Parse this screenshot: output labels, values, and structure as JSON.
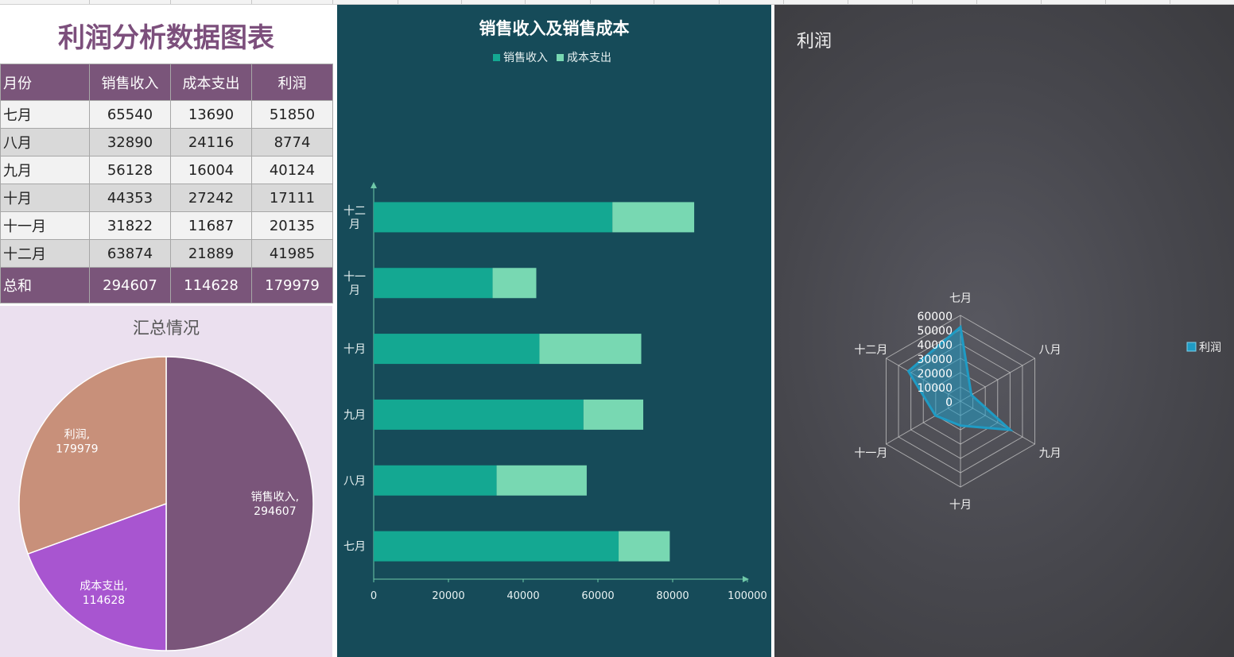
{
  "table": {
    "title": "利润分析数据图表",
    "headers": [
      "月份",
      "销售收入",
      "成本支出",
      "利润"
    ],
    "rows": [
      [
        "七月",
        "65540",
        "13690",
        "51850"
      ],
      [
        "八月",
        "32890",
        "24116",
        "8774"
      ],
      [
        "九月",
        "56128",
        "16004",
        "40124"
      ],
      [
        "十月",
        "44353",
        "27242",
        "17111"
      ],
      [
        "十一月",
        "31822",
        "11687",
        "20135"
      ],
      [
        "十二月",
        "63874",
        "21889",
        "41985"
      ]
    ],
    "total": [
      "总和",
      "294607",
      "114628",
      "179979"
    ]
  },
  "colors": {
    "purple": "#7a557a",
    "revenue": "#14a892",
    "cost": "#78d8b2",
    "pie_revenue": "#7a557a",
    "pie_cost": "#a855d0",
    "pie_profit": "#c8907a",
    "radar": "#1f9bc4"
  },
  "chart_data": [
    {
      "type": "pie",
      "title": "汇总情况",
      "slices": [
        {
          "name": "销售收入",
          "value": 294607,
          "label": "销售收入,",
          "value_label": "294607"
        },
        {
          "name": "成本支出",
          "value": 114628,
          "label": "成本支出,",
          "value_label": "114628"
        },
        {
          "name": "利润",
          "value": 179979,
          "label": "利润,",
          "value_label": "179979"
        }
      ]
    },
    {
      "type": "bar",
      "orientation": "horizontal",
      "stacked": true,
      "title": "销售收入及销售成本",
      "categories": [
        "七月",
        "八月",
        "九月",
        "十月",
        "十一月",
        "十二月"
      ],
      "category_labels": [
        [
          "七月"
        ],
        [
          "八月"
        ],
        [
          "九月"
        ],
        [
          "十月"
        ],
        [
          "十一",
          "月"
        ],
        [
          "十二",
          "月"
        ]
      ],
      "series": [
        {
          "name": "销售收入",
          "values": [
            65540,
            32890,
            56128,
            44353,
            31822,
            63874
          ]
        },
        {
          "name": "成本支出",
          "values": [
            13690,
            24116,
            16004,
            27242,
            11687,
            21889
          ]
        }
      ],
      "xlim": [
        0,
        100000
      ],
      "xticks": [
        "0",
        "20000",
        "40000",
        "60000",
        "80000",
        "100000"
      ],
      "legend": "top",
      "grid": false
    },
    {
      "type": "radar",
      "title": "利润",
      "categories": [
        "七月",
        "八月",
        "九月",
        "十月",
        "十一月",
        "十二月"
      ],
      "series": [
        {
          "name": "利润",
          "values": [
            51850,
            8774,
            40124,
            17111,
            20135,
            41985
          ]
        }
      ],
      "rlim": [
        0,
        60000
      ],
      "rticks": [
        "0",
        "10000",
        "20000",
        "30000",
        "40000",
        "50000",
        "60000"
      ],
      "legend": "right"
    }
  ]
}
